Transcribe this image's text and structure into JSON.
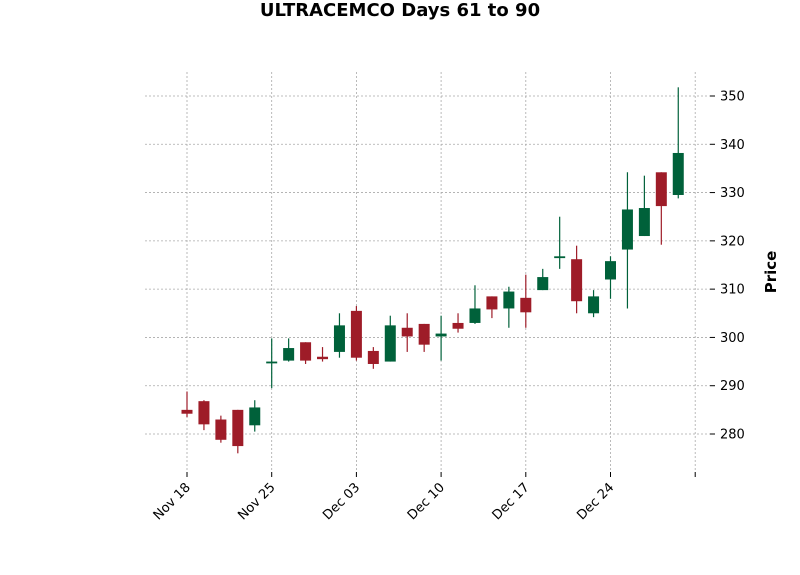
{
  "chart_data": {
    "type": "candlestick",
    "title": "ULTRACEMCO Days 61 to 90",
    "ylabel": "Price",
    "xlabel": "",
    "ylim": [
      272,
      355
    ],
    "yticks": [
      280,
      290,
      300,
      310,
      320,
      330,
      340,
      350
    ],
    "xticks": [
      {
        "index": 0,
        "label": "Nov 18"
      },
      {
        "index": 5,
        "label": "Nov 25"
      },
      {
        "index": 10,
        "label": "Dec 03"
      },
      {
        "index": 15,
        "label": "Dec 10"
      },
      {
        "index": 20,
        "label": "Dec 17"
      },
      {
        "index": 25,
        "label": "Dec 24"
      },
      {
        "index": 30,
        "label": ""
      }
    ],
    "grid": true,
    "up_color": "#00613a",
    "down_color": "#9e1c28",
    "candles": [
      {
        "open": 285.0,
        "high": 288.8,
        "low": 283.5,
        "close": 284.2
      },
      {
        "open": 286.8,
        "high": 287.0,
        "low": 280.8,
        "close": 282.0
      },
      {
        "open": 283.0,
        "high": 283.8,
        "low": 278.2,
        "close": 278.8
      },
      {
        "open": 285.0,
        "high": 285.0,
        "low": 276.0,
        "close": 277.5
      },
      {
        "open": 281.8,
        "high": 287.0,
        "low": 280.5,
        "close": 285.5
      },
      {
        "open": 294.8,
        "high": 299.8,
        "low": 289.5,
        "close": 295.0
      },
      {
        "open": 295.2,
        "high": 299.8,
        "low": 295.0,
        "close": 297.8
      },
      {
        "open": 299.0,
        "high": 299.0,
        "low": 294.5,
        "close": 295.2
      },
      {
        "open": 296.0,
        "high": 298.0,
        "low": 295.0,
        "close": 295.5
      },
      {
        "open": 297.0,
        "high": 305.0,
        "low": 295.8,
        "close": 302.5
      },
      {
        "open": 305.5,
        "high": 306.5,
        "low": 295.2,
        "close": 295.8
      },
      {
        "open": 297.2,
        "high": 298.0,
        "low": 293.5,
        "close": 294.5
      },
      {
        "open": 295.0,
        "high": 304.5,
        "low": 295.0,
        "close": 302.5
      },
      {
        "open": 302.0,
        "high": 305.0,
        "low": 297.0,
        "close": 300.2
      },
      {
        "open": 302.8,
        "high": 302.8,
        "low": 297.0,
        "close": 298.5
      },
      {
        "open": 300.2,
        "high": 304.5,
        "low": 295.2,
        "close": 300.8
      },
      {
        "open": 303.0,
        "high": 305.0,
        "low": 301.0,
        "close": 301.8
      },
      {
        "open": 303.0,
        "high": 310.8,
        "low": 302.8,
        "close": 306.0
      },
      {
        "open": 308.5,
        "high": 308.5,
        "low": 304.0,
        "close": 305.8
      },
      {
        "open": 306.0,
        "high": 310.5,
        "low": 302.0,
        "close": 309.5
      },
      {
        "open": 308.2,
        "high": 313.0,
        "low": 302.0,
        "close": 305.2
      },
      {
        "open": 309.8,
        "high": 314.2,
        "low": 309.8,
        "close": 312.5
      },
      {
        "open": 316.5,
        "high": 325.0,
        "low": 314.2,
        "close": 316.8
      },
      {
        "open": 316.2,
        "high": 319.0,
        "low": 305.0,
        "close": 307.5
      },
      {
        "open": 305.0,
        "high": 309.8,
        "low": 304.2,
        "close": 308.5
      },
      {
        "open": 312.0,
        "high": 316.8,
        "low": 308.0,
        "close": 315.8
      },
      {
        "open": 318.2,
        "high": 334.2,
        "low": 306.0,
        "close": 326.5
      },
      {
        "open": 321.0,
        "high": 333.5,
        "low": 321.0,
        "close": 326.8
      },
      {
        "open": 334.2,
        "high": 334.2,
        "low": 319.2,
        "close": 327.2
      },
      {
        "open": 329.5,
        "high": 351.8,
        "low": 328.8,
        "close": 338.2
      }
    ]
  }
}
